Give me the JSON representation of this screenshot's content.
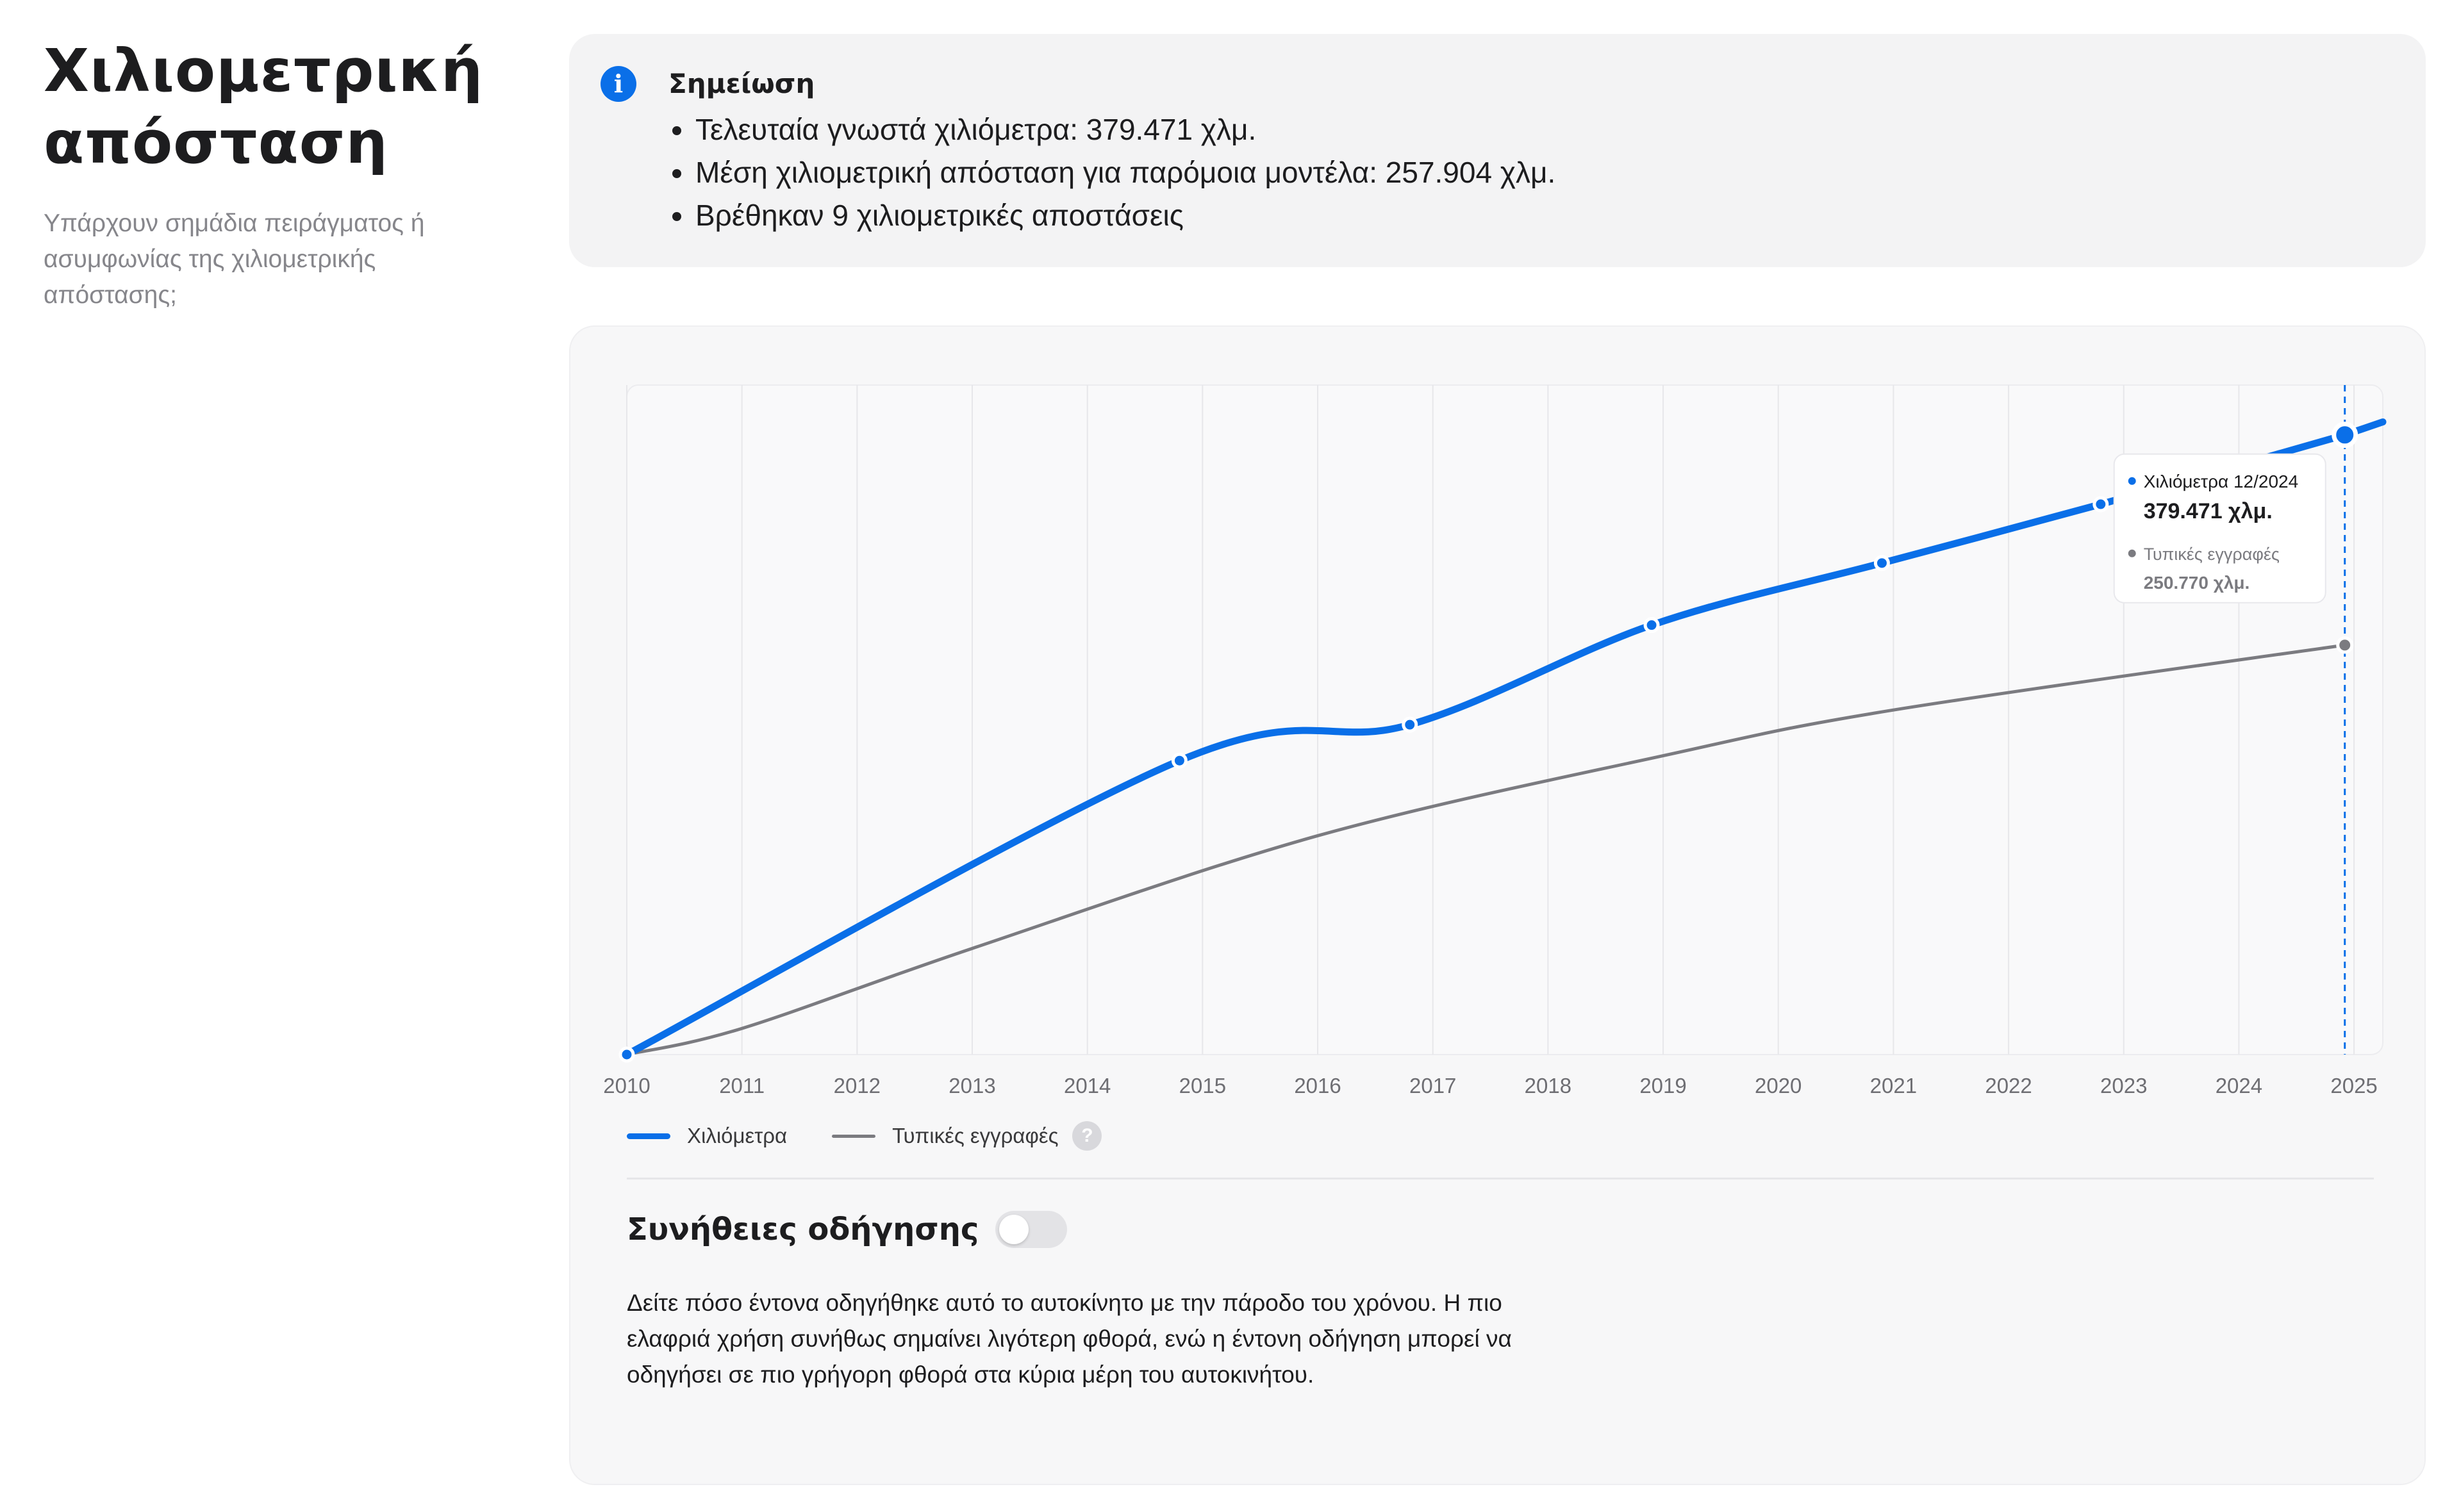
{
  "header": {
    "title": "Χιλιομετρική απόσταση",
    "subtitle": "Υπάρχουν σημάδια πειράγματος ή ασυμφωνίας της χιλιομετρικής απόστασης;"
  },
  "note": {
    "title": "Σημείωση",
    "items": [
      "Τελευταία γνωστά χιλιόμετρα: 379.471 χλμ.",
      "Μέση χιλιομετρική απόσταση για παρόμοια μοντέλα: 257.904 χλμ.",
      "Βρέθηκαν 9 χιλιομετρικές αποστάσεις"
    ]
  },
  "chart_data": {
    "type": "line",
    "xlim": [
      2010,
      2025.25
    ],
    "ylim": [
      0,
      410000
    ],
    "grid": true,
    "x_ticks": [
      "2010",
      "2011",
      "2012",
      "2013",
      "2014",
      "2015",
      "2016",
      "2017",
      "2018",
      "2019",
      "2020",
      "2021",
      "2022",
      "2023",
      "2024",
      "2025"
    ],
    "legend_position": "bottom-left",
    "series": [
      {
        "name": "Χιλιόμετρα",
        "color": "#0a6fe8",
        "points": [
          {
            "x": 2010,
            "y": 0
          },
          {
            "x": 2014.8,
            "y": 180000
          },
          {
            "x": 2016.8,
            "y": 202000
          },
          {
            "x": 2018.9,
            "y": 263000
          },
          {
            "x": 2020.9,
            "y": 301000
          },
          {
            "x": 2022.8,
            "y": 337000
          },
          {
            "x": 2024.92,
            "y": 379471
          }
        ]
      },
      {
        "name": "Τυπικές εγγραφές",
        "color": "#7b7b80",
        "points": [
          {
            "x": 2010,
            "y": 0
          },
          {
            "x": 2011,
            "y": 16000
          },
          {
            "x": 2013,
            "y": 65000
          },
          {
            "x": 2016,
            "y": 134000
          },
          {
            "x": 2019,
            "y": 183000
          },
          {
            "x": 2021,
            "y": 211000
          },
          {
            "x": 2024.92,
            "y": 250770
          }
        ]
      }
    ],
    "tooltip": {
      "x": 2024.92,
      "series1_label": "Χιλιόμετρα 12/2024",
      "series1_value": "379.471 χλμ.",
      "series2_label": "Τυπικές εγγραφές",
      "series2_value": "250.770 χλμ."
    }
  },
  "habits": {
    "title": "Συνήθειες οδήγησης",
    "description": "Δείτε πόσο έντονα οδηγήθηκε αυτό το αυτοκίνητο με την πάροδο του χρόνου. Η πιο ελαφριά χρήση συνήθως σημαίνει λιγότερη φθορά, ενώ η έντονη οδήγηση μπορεί να οδηγήσει σε πιο γρήγορη φθορά στα κύρια μέρη του αυτοκινήτου."
  },
  "icons": {
    "info": "info-icon",
    "help": "help-icon"
  },
  "glyphs": {
    "info": "i",
    "help": "?"
  },
  "colors": {
    "accent": "#0a6fe8",
    "typical": "#7b7b80"
  }
}
